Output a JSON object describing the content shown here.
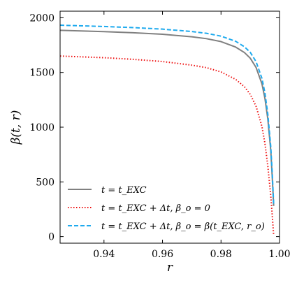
{
  "chart_data": {
    "type": "line",
    "xlabel": "r",
    "ylabel": "β(t, r)",
    "xlim": [
      0.925,
      1.0
    ],
    "ylim": [
      -60,
      2060
    ],
    "xticks": [
      0.94,
      0.96,
      0.98,
      1.0
    ],
    "xtick_labels": [
      "0.94",
      "0.96",
      "0.98",
      "1.00"
    ],
    "yticks": [
      0,
      500,
      1000,
      1500,
      2000
    ],
    "ytick_labels": [
      "0",
      "500",
      "1000",
      "1500",
      "2000"
    ],
    "grid": false,
    "legend_position": "lower-left",
    "colors": {
      "gray": "#808080",
      "red": "#ee1111",
      "cyan": "#1eaaee"
    },
    "series": [
      {
        "name": "t = t_EXC",
        "style": "solid",
        "color": "#808080",
        "x": [
          0.925,
          0.93,
          0.94,
          0.95,
          0.96,
          0.97,
          0.975,
          0.98,
          0.985,
          0.988,
          0.99,
          0.992,
          0.994,
          0.995,
          0.996,
          0.997,
          0.9975,
          0.998
        ],
        "y": [
          1885,
          1881,
          1873,
          1863,
          1849,
          1826,
          1809,
          1782,
          1732,
          1682,
          1630,
          1545,
          1395,
          1265,
          1075,
          790,
          550,
          280
        ]
      },
      {
        "name": "t = t_EXC + Δt, β_o = 0",
        "style": "dotted",
        "color": "#ee1111",
        "x": [
          0.925,
          0.93,
          0.94,
          0.95,
          0.96,
          0.97,
          0.975,
          0.98,
          0.985,
          0.988,
          0.99,
          0.992,
          0.994,
          0.995,
          0.996,
          0.997,
          0.9975,
          0.998
        ],
        "y": [
          1650,
          1645,
          1635,
          1620,
          1600,
          1567,
          1544,
          1505,
          1437,
          1370,
          1300,
          1190,
          1005,
          855,
          645,
          375,
          200,
          10
        ]
      },
      {
        "name": "t = t_EXC + Δt, β_o = β(t_EXC, r_o)",
        "style": "dashed",
        "color": "#1eaaee",
        "x": [
          0.925,
          0.93,
          0.94,
          0.95,
          0.96,
          0.97,
          0.975,
          0.98,
          0.985,
          0.988,
          0.99,
          0.992,
          0.994,
          0.995,
          0.996,
          0.997,
          0.9975,
          0.998
        ],
        "y": [
          1932,
          1928,
          1920,
          1910,
          1896,
          1874,
          1858,
          1832,
          1785,
          1735,
          1684,
          1598,
          1445,
          1315,
          1120,
          825,
          590,
          300
        ]
      }
    ]
  }
}
